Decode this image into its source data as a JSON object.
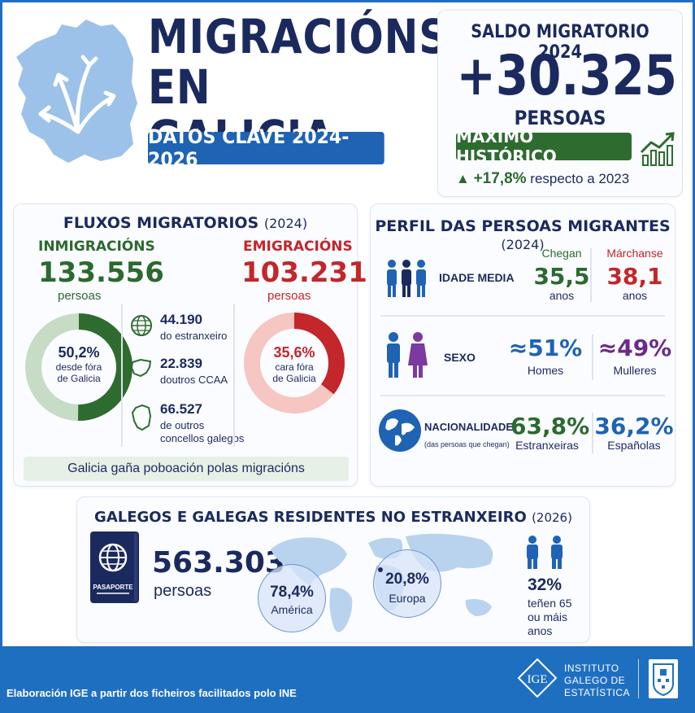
{
  "header": {
    "title_line1": "MIGRACIÓNS",
    "title_line2": "EN GALICIA",
    "subtitle": "DATOS CLAVE 2024-2026"
  },
  "saldo": {
    "title": "SALDO MIGRATORIO",
    "year": "2024",
    "value": "+30.325",
    "unit": "PERSOAS",
    "badge": "MÁXIMO HISTÓRICO",
    "growth_arrow": "▲",
    "growth_pct": "+17,8%",
    "growth_text": "respecto a 2023"
  },
  "fluxos": {
    "title": "FLUXOS MIGRATORIOS",
    "year": "(2024)",
    "inmigracions": {
      "label": "INMIGRACIÓNS",
      "value": "133.556",
      "unit": "persoas",
      "donut_pct_value": 0.502,
      "donut_pct": "50,2%",
      "donut_text1": "desde fóra",
      "donut_text2": "de Galicia"
    },
    "emigracions": {
      "label": "EMIGRACIÓNS",
      "value": "103.231",
      "unit": "persoas",
      "donut_pct_value": 0.356,
      "donut_pct": "35,6%",
      "donut_text1": "cara fóra",
      "donut_text2": "de Galicia"
    },
    "origins": [
      {
        "icon": "globe-icon",
        "value": "44.190",
        "label": "do estranxeiro"
      },
      {
        "icon": "spain-map-icon",
        "value": "22.839",
        "label": "doutros CCAA"
      },
      {
        "icon": "galicia-map-icon",
        "value": "66.527",
        "label1": "de outros",
        "label2": "concellos galegos"
      }
    ],
    "footer": "Galicia gaña poboación polas migracións"
  },
  "perfil": {
    "title": "PERFIL DAS PERSOAS MIGRANTES",
    "year": "(2024)",
    "col_chegan": "Chegan",
    "col_marchanse": "Márchanse",
    "idade": {
      "label": "IDADE MEDIA",
      "chegan": "35,5",
      "marchanse": "38,1",
      "unit": "anos"
    },
    "sexo": {
      "label": "SEXO",
      "homes": "≈51%",
      "homes_label": "Homes",
      "mulleres": "≈49%",
      "mulleres_label": "Mulleres"
    },
    "nacionalidade": {
      "label": "NACIONALIDADE",
      "sublabel": "(das persoas que chegan)",
      "estranxeiras": "63,8%",
      "estranxeiras_label": "Estranxeiras",
      "espanolas": "36,2%",
      "espanolas_label": "Españolas"
    }
  },
  "residentes": {
    "title": "GALEGOS E GALEGAS RESIDENTES NO ESTRANXEIRO",
    "year": "(2026)",
    "passport_label": "PASAPORTE",
    "value": "563.303",
    "unit": "persoas",
    "america_pct": "78,4%",
    "america_label": "América",
    "europa_pct": "20,8%",
    "europa_label": "Europa",
    "senior_pct": "32%",
    "senior_text1": "teñen 65",
    "senior_text2": "ou máis",
    "senior_text3": "anos"
  },
  "footer": {
    "note": "Elaboración IGE a partir dos ficheiros facilitados polo INE",
    "logo_text": "IGE",
    "org_line1": "INSTITUTO",
    "org_line2": "GALEGO DE",
    "org_line3": "ESTATÍSTICA"
  },
  "colors": {
    "navy": "#1b2a5e",
    "blue": "#1e63b4",
    "green": "#2e6b2f",
    "red": "#c3262b",
    "purple": "#6b2a8c"
  }
}
